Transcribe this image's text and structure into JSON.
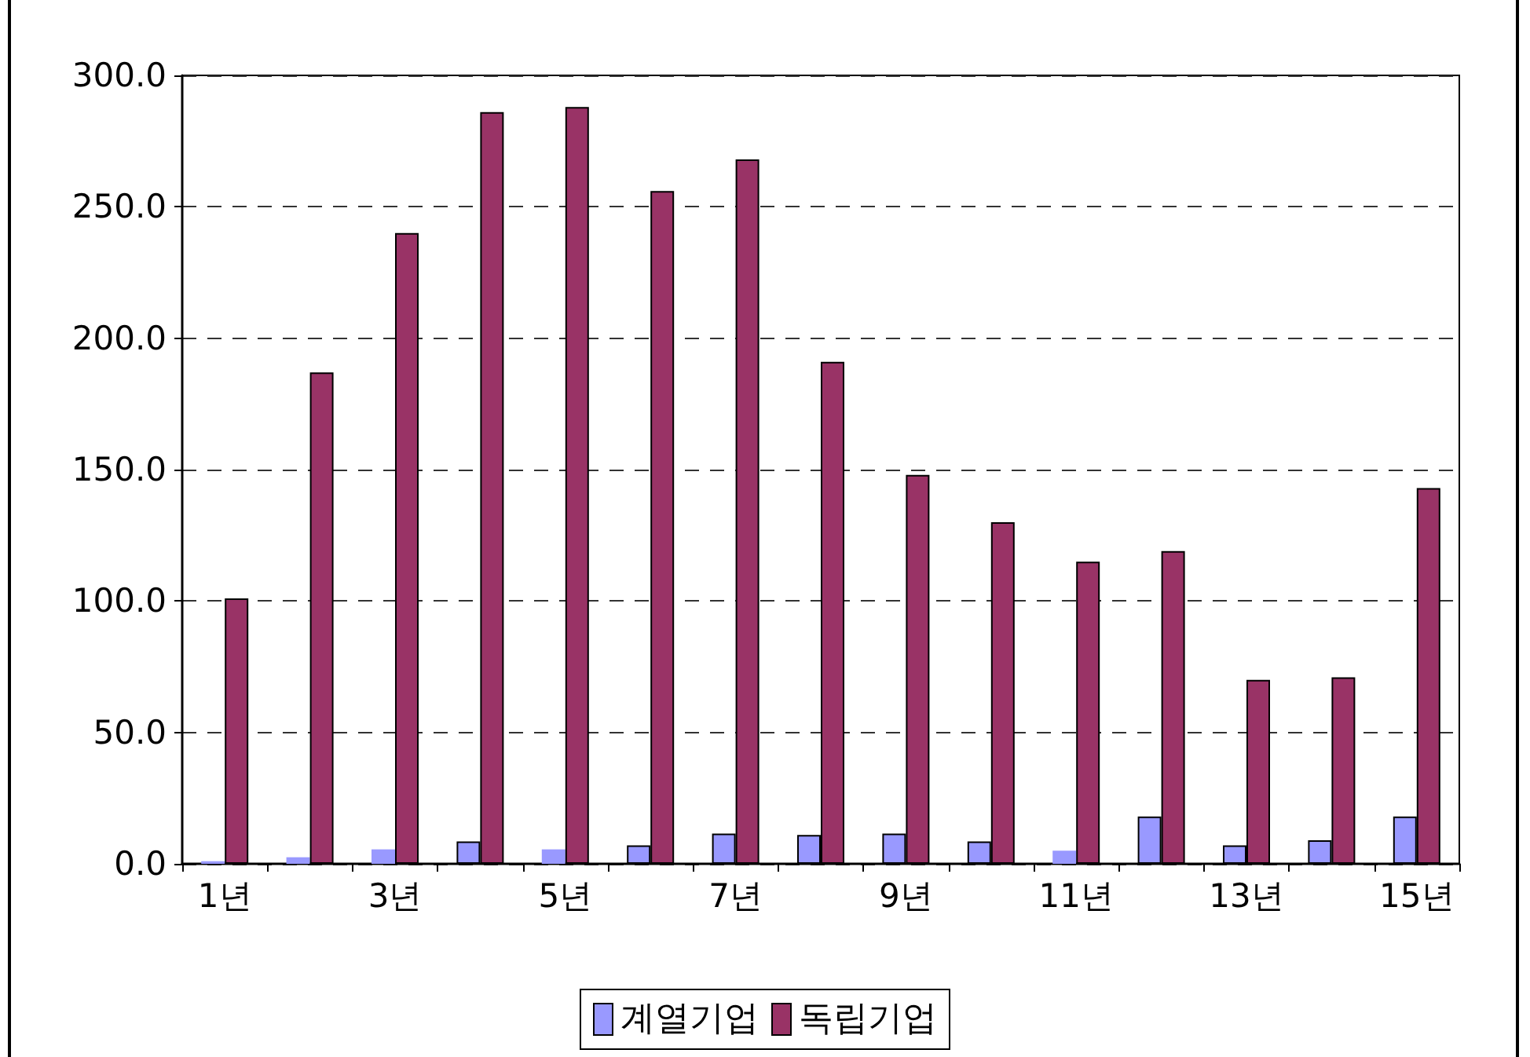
{
  "chart_data": {
    "type": "bar",
    "categories": [
      "1년",
      null,
      "3년",
      null,
      "5년",
      null,
      "7년",
      null,
      "9년",
      null,
      "11년",
      null,
      "13년",
      null,
      "15년"
    ],
    "series": [
      {
        "name": "계열기업",
        "color": "#9999ff",
        "values": [
          1,
          2.5,
          5.5,
          8.5,
          5.5,
          7,
          11.5,
          11,
          11.5,
          8.5,
          5,
          18,
          7,
          9,
          18
        ]
      },
      {
        "name": "독립기업",
        "color": "#993366",
        "values": [
          101,
          187,
          240,
          286,
          288,
          256,
          268,
          191,
          148,
          130,
          115,
          119,
          70,
          71,
          143
        ]
      }
    ],
    "ylim": [
      0,
      300
    ],
    "yticks": [
      {
        "value": 0,
        "label": "0.0"
      },
      {
        "value": 50,
        "label": "50.0"
      },
      {
        "value": 100,
        "label": "100.0"
      },
      {
        "value": 150,
        "label": "150.0"
      },
      {
        "value": 200,
        "label": "200.0"
      },
      {
        "value": 250,
        "label": "250.0"
      },
      {
        "value": 300,
        "label": "300.0"
      }
    ],
    "grid": "y",
    "legend": "bottom"
  }
}
